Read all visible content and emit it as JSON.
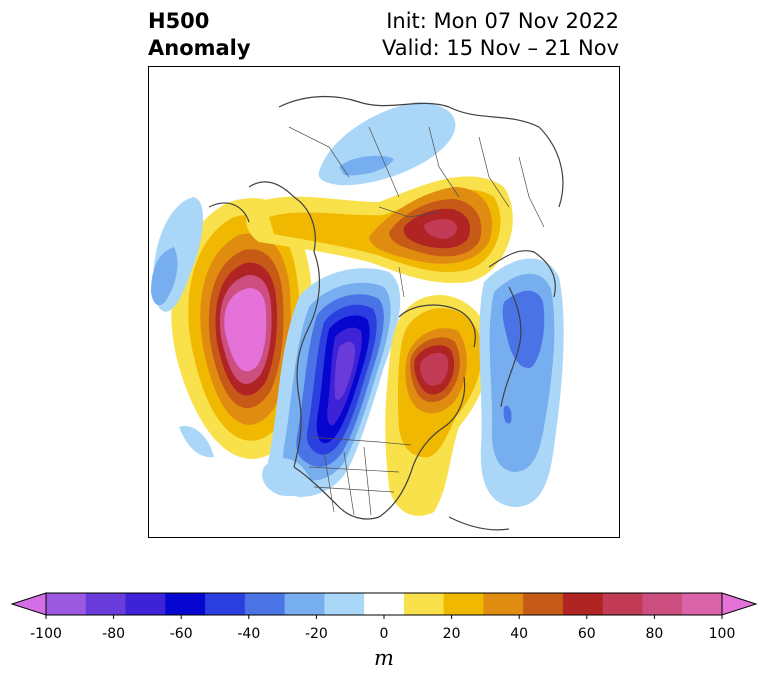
{
  "title": {
    "left_line1": "H500",
    "left_line2": "Anomaly",
    "right_line1": "Init: Mon 07 Nov 2022",
    "right_line2": "Valid: 15 Nov – 21 Nov"
  },
  "colorbar": {
    "unit": "m",
    "tick_labels": [
      "-100",
      "-80",
      "-60",
      "-40",
      "-20",
      "0",
      "20",
      "40",
      "60",
      "80",
      "100"
    ],
    "levels": [
      -100,
      -90,
      -80,
      -70,
      -60,
      -50,
      -40,
      -30,
      -20,
      -10,
      10,
      20,
      30,
      40,
      50,
      60,
      70,
      80,
      90,
      100
    ],
    "colors": [
      "#d46ee6",
      "#9b59e0",
      "#6a3bdb",
      "#3d22d6",
      "#0606d0",
      "#2b3fe0",
      "#4a74e6",
      "#76aef0",
      "#aad7f8",
      "#ffffff",
      "#f9e14b",
      "#f0b800",
      "#df8c10",
      "#c85a18",
      "#b02424",
      "#c13a56",
      "#cc4f80",
      "#d965a8",
      "#e472d8"
    ],
    "extend": "both"
  },
  "map": {
    "projection": "polar stereographic (North America / Northern Hemisphere)",
    "features": [
      "coastlines",
      "country borders",
      "state boundaries"
    ]
  }
}
